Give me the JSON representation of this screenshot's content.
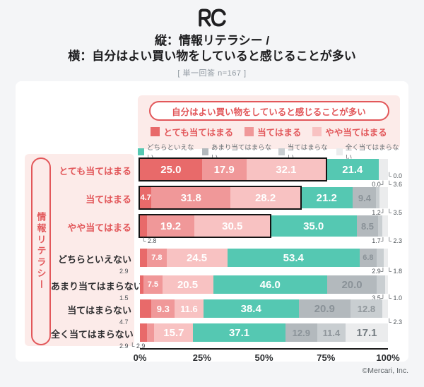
{
  "header": {
    "logo": "RC",
    "title_line1": "縦：情報リテラシー /",
    "title_line2": "横：自分はよい買い物をしていると感じることが多い",
    "subtitle": "[ 単一回答 n=167 ]"
  },
  "legend": {
    "box_title": "自分はよい買い物をしていると感じることが多い",
    "row1": [
      {
        "label": "とても当てはまる",
        "color": "#e86a6a"
      },
      {
        "label": "当てはまる",
        "color": "#f09899"
      },
      {
        "label": "やや当てはまる",
        "color": "#f8c2c2"
      }
    ],
    "row2": [
      {
        "label": "どちらといえない",
        "color": "#55c8b2"
      },
      {
        "label": "あまり当てはまらない",
        "color": "#b3b9bd"
      },
      {
        "label": "当てはまらない",
        "color": "#c9ced1"
      },
      {
        "label": "全く当てはまらない",
        "color": "#ebeced"
      }
    ]
  },
  "y_axis_group_label": "情報リテラシー",
  "chart_data": {
    "type": "bar",
    "stacked": true,
    "orientation": "horizontal",
    "title": "縦：情報リテラシー / 横：自分はよい買い物をしていると感じることが多い",
    "sample_note": "単一回答 n=167",
    "xlim": [
      0,
      100
    ],
    "x_ticks": [
      "0%",
      "25%",
      "50%",
      "75%",
      "100%"
    ],
    "series_names": [
      "とても当てはまる",
      "当てはまる",
      "やや当てはまる",
      "どちらといえない",
      "あまり当てはまらない",
      "当てはまらない",
      "全く当てはまらない"
    ],
    "categories": [
      "とても当てはまる",
      "当てはまる",
      "やや当てはまる",
      "どちらといえない",
      "あまり当てはまらない",
      "当てはまらない",
      "全く当てはまらない"
    ],
    "rows": [
      {
        "category": "とても当てはまる",
        "red_label": true,
        "highlight_span": 3,
        "values": [
          25.0,
          17.9,
          32.1,
          21.4,
          0.0,
          0.0,
          3.6
        ],
        "inside": [
          1,
          1,
          1,
          1,
          0,
          0,
          0
        ],
        "callouts": [
          {
            "text": "└ 0.0",
            "align": "right",
            "line": 0
          },
          {
            "text": "0.0┘ └ 3.6",
            "align": "right",
            "line": 1
          }
        ]
      },
      {
        "category": "当てはまる",
        "red_label": true,
        "highlight_span": 3,
        "values": [
          4.7,
          31.8,
          28.2,
          21.2,
          9.4,
          1.2,
          3.5
        ],
        "inside": [
          1,
          1,
          1,
          1,
          1,
          0,
          0
        ],
        "callouts": [
          {
            "text": "1.2┘ └ 3.5",
            "align": "right",
            "line": 1
          }
        ]
      },
      {
        "category": "やや当てはまる",
        "red_label": true,
        "highlight_span": 3,
        "values": [
          2.8,
          19.2,
          30.5,
          35.0,
          8.5,
          1.7,
          2.3
        ],
        "inside": [
          0,
          1,
          1,
          1,
          1,
          0,
          0
        ],
        "callouts": [
          {
            "text": "└ 2.8",
            "align": "left-in",
            "line": 1
          },
          {
            "text": "1.7┘ └ 2.3",
            "align": "right",
            "line": 1
          }
        ]
      },
      {
        "category": "どちらといえない",
        "red_label": false,
        "highlight_span": 0,
        "values": [
          2.9,
          7.8,
          24.5,
          53.4,
          6.8,
          2.9,
          1.8
        ],
        "inside": [
          0,
          1,
          1,
          1,
          1,
          0,
          0
        ],
        "callouts": [
          {
            "text": "2.9",
            "align": "left-out",
            "line": 1
          },
          {
            "text": "2.9┘ └ 1.8",
            "align": "right",
            "line": 1
          }
        ]
      },
      {
        "category": "あまり当てはまらない",
        "red_label": false,
        "highlight_span": 0,
        "values": [
          1.5,
          7.5,
          20.5,
          46.0,
          20.0,
          3.5,
          1.0
        ],
        "inside": [
          0,
          1,
          1,
          1,
          1,
          0,
          0
        ],
        "callouts": [
          {
            "text": "1.5",
            "align": "left-out",
            "line": 1
          },
          {
            "text": "3.5┘ └ 1.0",
            "align": "right",
            "line": 1
          }
        ]
      },
      {
        "category": "当てはまらない",
        "red_label": false,
        "highlight_span": 0,
        "values": [
          4.7,
          9.3,
          11.6,
          38.4,
          20.9,
          12.8,
          2.3
        ],
        "inside": [
          0,
          1,
          1,
          1,
          1,
          1,
          0
        ],
        "callouts": [
          {
            "text": "4.7",
            "align": "left-out",
            "line": 1
          },
          {
            "text": "└ 2.3",
            "align": "right",
            "line": 1
          }
        ]
      },
      {
        "category": "全く当てはまらない",
        "red_label": false,
        "highlight_span": 0,
        "values": [
          2.9,
          2.9,
          15.7,
          37.1,
          12.9,
          11.4,
          17.1
        ],
        "inside": [
          0,
          0,
          1,
          1,
          1,
          1,
          1
        ],
        "callouts": [
          {
            "text": "2.9 └ 2.9",
            "align": "left-out",
            "line": 1
          }
        ]
      }
    ]
  },
  "colors": {
    "accent_red": "#e2575a",
    "panel_pink": "#fcebe9",
    "outline": "#141414",
    "segment_colors": [
      "#e86a6a",
      "#f09899",
      "#f8c2c2",
      "#55c8b2",
      "#b3b9bd",
      "#c9ced1",
      "#ebeced"
    ],
    "segment_label_colors": [
      "#ffffff",
      "#ffffff",
      "#ffffff",
      "#ffffff",
      "#8a9298",
      "#8f969b",
      "#757d82"
    ]
  },
  "footer": {
    "copyright": "©Mercari, Inc."
  }
}
